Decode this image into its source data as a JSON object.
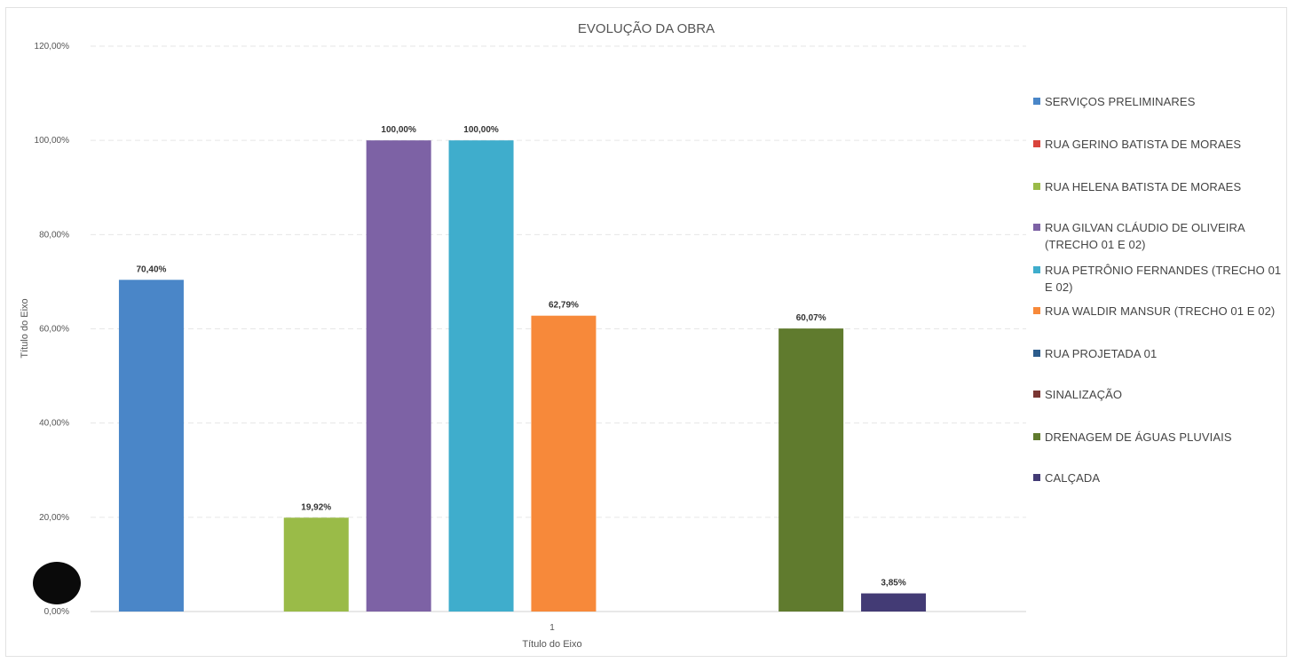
{
  "chart_data": {
    "type": "bar",
    "title": "EVOLUÇÃO DA OBRA",
    "xlabel": "Título do Eixo",
    "ylabel": "Título do Eixo",
    "categories": [
      "1"
    ],
    "ylim": [
      0,
      120
    ],
    "y_ticks": [
      "0,00%",
      "20,00%",
      "40,00%",
      "60,00%",
      "80,00%",
      "100,00%",
      "120,00%"
    ],
    "y_tick_values": [
      0,
      20,
      40,
      60,
      80,
      100,
      120
    ],
    "grid": true,
    "legend_position": "right",
    "series": [
      {
        "name": "SERVIÇOS PRELIMINARES",
        "values": [
          70.4
        ],
        "label": "70,40%",
        "color": "#4a86c8"
      },
      {
        "name": "RUA GERINO BATISTA DE MORAES",
        "values": [
          null
        ],
        "label": "",
        "color": "#d9443c"
      },
      {
        "name": "RUA HELENA BATISTA DE MORAES",
        "values": [
          19.92
        ],
        "label": "19,92%",
        "color": "#9abb48"
      },
      {
        "name": "RUA GILVAN CLÁUDIO DE OLIVEIRA (TRECHO 01 E 02)",
        "values": [
          100.0
        ],
        "label": "100,00%",
        "color": "#7d62a5"
      },
      {
        "name": "RUA PETRÔNIO FERNANDES (TRECHO 01 E 02)",
        "values": [
          100.0
        ],
        "label": "100,00%",
        "color": "#3fadcc"
      },
      {
        "name": "RUA WALDIR MANSUR (TRECHO 01 E 02)",
        "values": [
          62.79
        ],
        "label": "62,79%",
        "color": "#f7893a"
      },
      {
        "name": "RUA PROJETADA 01",
        "values": [
          null
        ],
        "label": "",
        "color": "#2c5c8c"
      },
      {
        "name": "SINALIZAÇÃO",
        "values": [
          null
        ],
        "label": "",
        "color": "#7a3633"
      },
      {
        "name": "DRENAGEM DE ÁGUAS PLUVIAIS",
        "values": [
          60.07
        ],
        "label": "60,07%",
        "color": "#607b2e"
      },
      {
        "name": "CALÇADA",
        "values": [
          3.85
        ],
        "label": "3,85%",
        "color": "#433b75"
      }
    ]
  }
}
